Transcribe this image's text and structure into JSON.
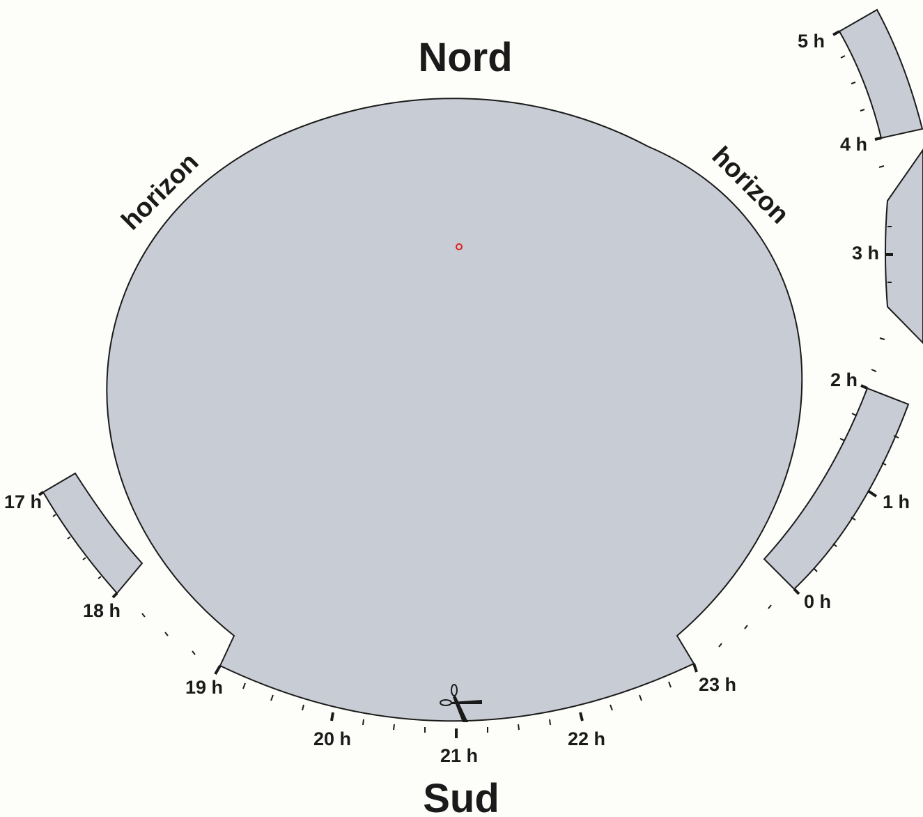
{
  "directions": {
    "north": "Nord",
    "south": "Sud"
  },
  "horizon": {
    "left": "horizon",
    "right": "horizon"
  },
  "hours": {
    "h17": "17 h",
    "h18": "18 h",
    "h19": "19 h",
    "h20": "20 h",
    "h21": "21 h",
    "h22": "22 h",
    "h23": "23 h",
    "h0": "0 h",
    "h1": "1 h",
    "h2": "2 h",
    "h3": "3 h",
    "h4": "4 h",
    "h5": "5 h"
  },
  "icons": {
    "scissors": "scissors-icon",
    "pole_marker": "celestial-pole-marker"
  },
  "colors": {
    "disc": "#c8ccd4",
    "outline": "#1a1a1a",
    "pole_marker": "#e02020",
    "background": "#fdfdfa"
  }
}
